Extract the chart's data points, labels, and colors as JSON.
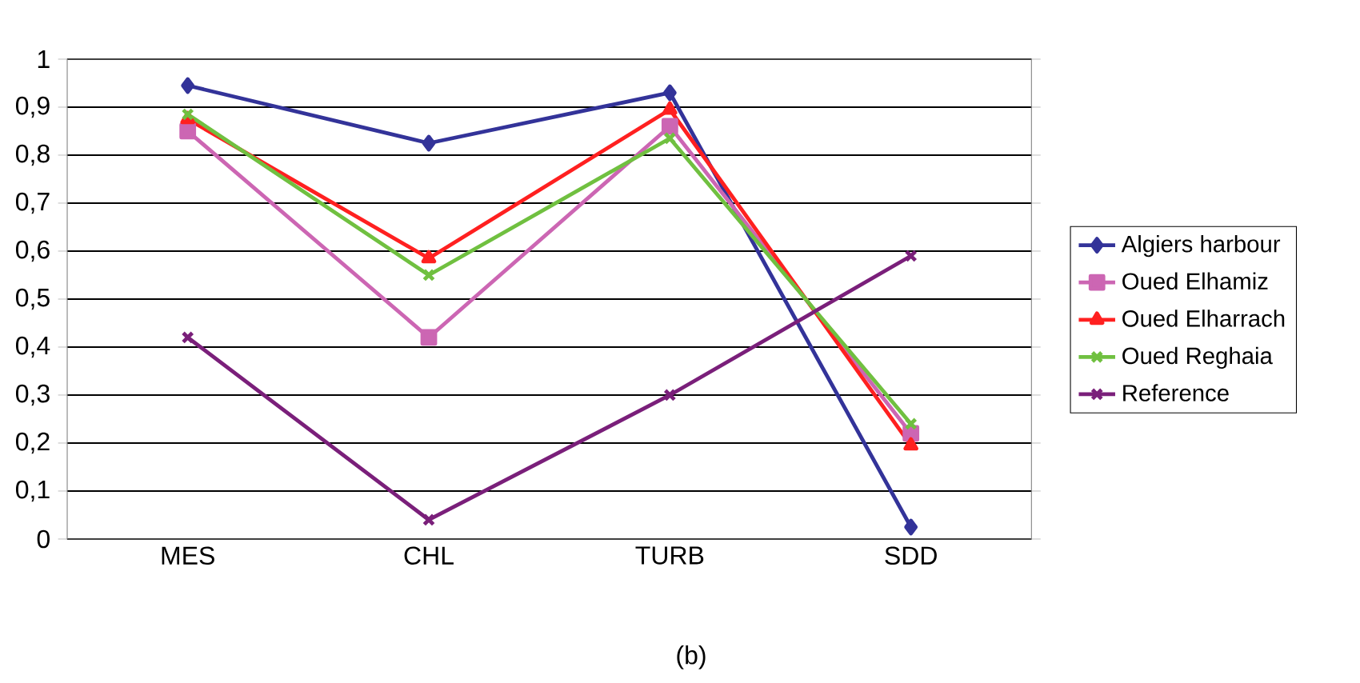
{
  "chart_data": {
    "type": "line",
    "categories": [
      "MES",
      "CHL",
      "TURB",
      "SDD"
    ],
    "series": [
      {
        "name": "Algiers harbour",
        "color": "#333399",
        "marker": "diamond",
        "values": [
          0.945,
          0.825,
          0.93,
          0.025
        ]
      },
      {
        "name": "Oued Elhamiz",
        "color": "#cc66b3",
        "marker": "square",
        "values": [
          0.85,
          0.42,
          0.86,
          0.22
        ]
      },
      {
        "name": "Oued Elharrach",
        "color": "#ff2020",
        "marker": "triangle",
        "values": [
          0.875,
          0.585,
          0.895,
          0.195
        ]
      },
      {
        "name": "Oued Reghaia",
        "color": "#70c040",
        "marker": "cross",
        "values": [
          0.885,
          0.55,
          0.835,
          0.24
        ]
      },
      {
        "name": "Reference",
        "color": "#7a1f7a",
        "marker": "cross",
        "values": [
          0.42,
          0.04,
          0.3,
          0.59
        ]
      }
    ],
    "ylim": [
      0,
      1
    ],
    "yticks": [
      0,
      {
        "value": 0.1,
        "label": "0,1"
      },
      {
        "value": 0.2,
        "label": "0,2"
      },
      {
        "value": 0.3,
        "label": "0,3"
      },
      {
        "value": 0.4,
        "label": "0,4"
      },
      {
        "value": 0.5,
        "label": "0,5"
      },
      {
        "value": 0.6,
        "label": "0,6"
      },
      {
        "value": 0.7,
        "label": "0,7"
      },
      {
        "value": 0.8,
        "label": "0,8"
      },
      {
        "value": 0.9,
        "label": "0,9"
      },
      1
    ],
    "grid": "y",
    "legend": "right",
    "line_style": "solid",
    "annotations": [
      "(b)"
    ]
  }
}
